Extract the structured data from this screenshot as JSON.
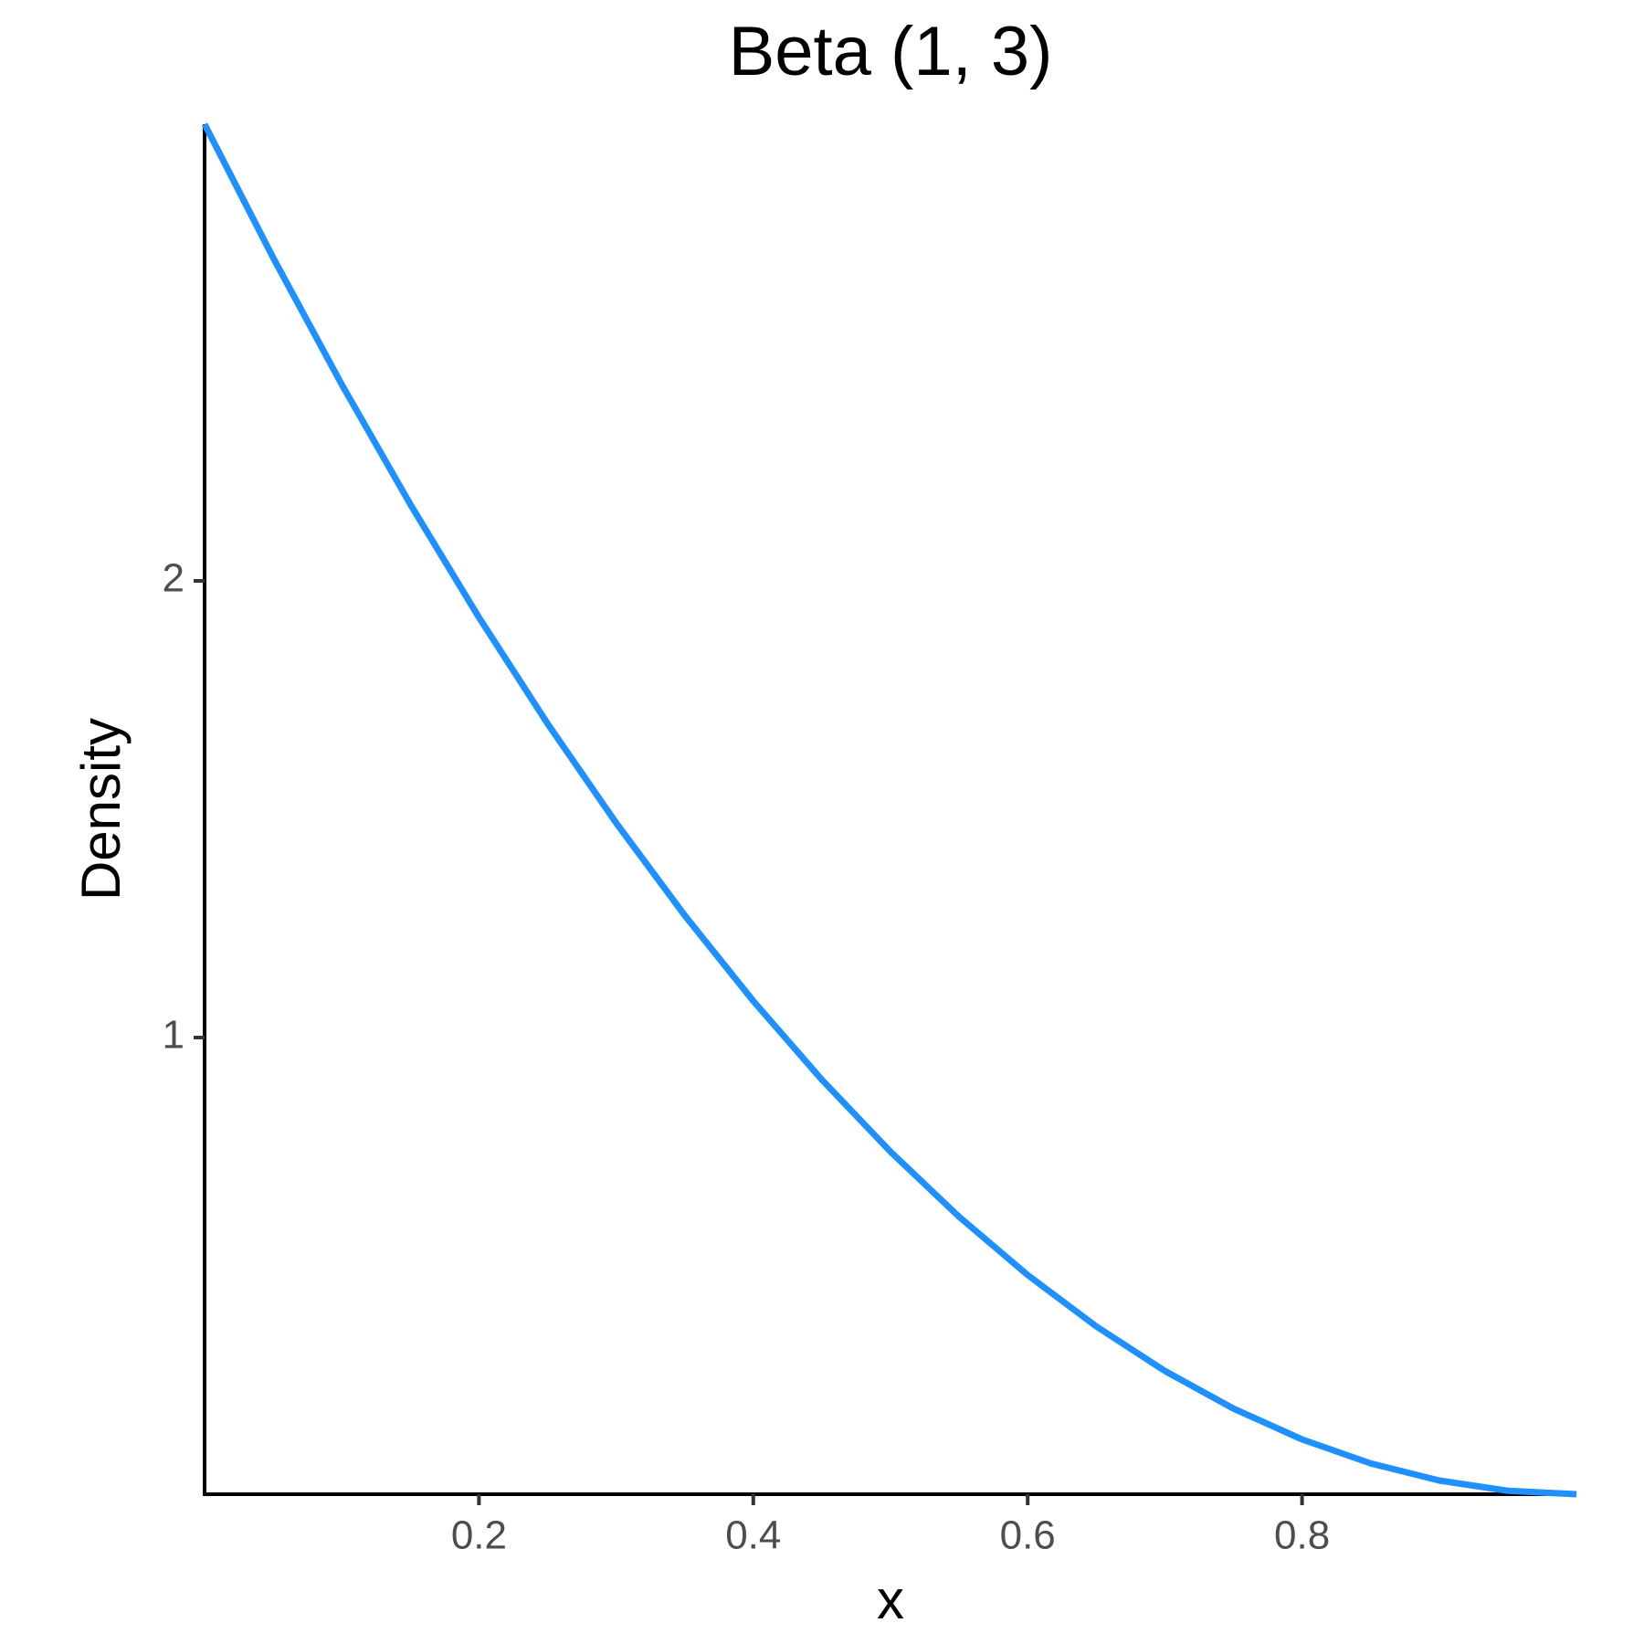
{
  "chart_data": {
    "type": "line",
    "title": "Beta (1, 3)",
    "x_label": "x",
    "y_label": "Density",
    "x": [
      0,
      0.05,
      0.1,
      0.15,
      0.2,
      0.25,
      0.3,
      0.35,
      0.4,
      0.45,
      0.5,
      0.55,
      0.6,
      0.65,
      0.7,
      0.75,
      0.8,
      0.85,
      0.9,
      0.95,
      1
    ],
    "series": [
      {
        "color": "#1E90FF",
        "values": [
          3,
          2.7075,
          2.43,
          2.1675,
          1.92,
          1.6875,
          1.47,
          1.2675,
          1.08,
          0.9075,
          0.75,
          0.6075,
          0.48,
          0.3675,
          0.27,
          0.1875,
          0.12,
          0.0675,
          0.03,
          0.0075,
          0
        ]
      }
    ],
    "xlim": [
      0,
      1
    ],
    "ylim": [
      0,
      3
    ],
    "xticks": [
      0.2,
      0.4,
      0.6,
      0.8
    ],
    "yticks": [
      1,
      2
    ],
    "grid": false
  }
}
